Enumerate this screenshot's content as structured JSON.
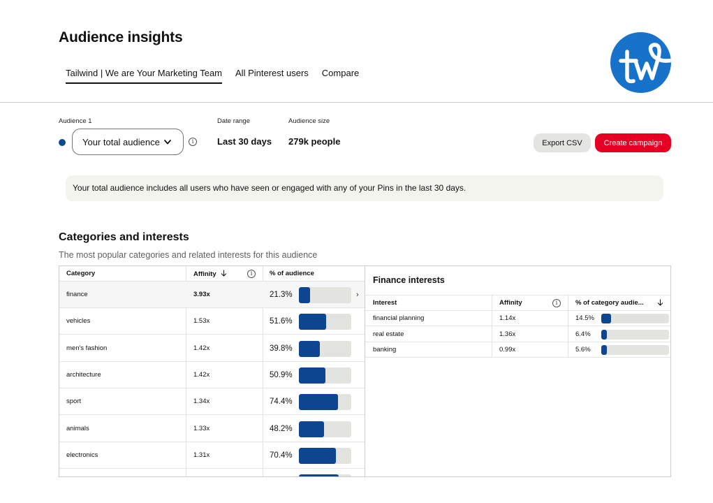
{
  "header": {
    "title": "Audience insights",
    "tabs": [
      {
        "label": "Tailwind | We are Your Marketing Team",
        "active": true
      },
      {
        "label": "All Pinterest users",
        "active": false
      },
      {
        "label": "Compare",
        "active": false
      }
    ],
    "logo": {
      "text": "tw",
      "color": "#1673c9"
    }
  },
  "filters": {
    "audience_label": "Audience 1",
    "audience_value": "Your total audience",
    "audience_dot_color": "#0d4a8f",
    "date_range_label": "Date range",
    "date_range_value": "Last 30 days",
    "audience_size_label": "Audience size",
    "audience_size_value": "279k people"
  },
  "actions": {
    "export_label": "Export CSV",
    "create_label": "Create campaign",
    "create_color": "#e60023"
  },
  "banner": {
    "text": "Your total audience includes all users who have seen or engaged with any of your Pins in the last 30 days."
  },
  "section": {
    "title": "Categories and interests",
    "subtitle": "The most popular categories and related interests for this audience"
  },
  "categories_table": {
    "headers": {
      "category": "Category",
      "affinity": "Affinity",
      "percent": "% of audience"
    },
    "rows": [
      {
        "category": "finance",
        "affinity": "3.93x",
        "percent": "21.3%",
        "fraction": 0.213,
        "selected": true
      },
      {
        "category": "vehicles",
        "affinity": "1.53x",
        "percent": "51.6%",
        "fraction": 0.516,
        "selected": false
      },
      {
        "category": "men's fashion",
        "affinity": "1.42x",
        "percent": "39.8%",
        "fraction": 0.398,
        "selected": false
      },
      {
        "category": "architecture",
        "affinity": "1.42x",
        "percent": "50.9%",
        "fraction": 0.509,
        "selected": false
      },
      {
        "category": "sport",
        "affinity": "1.34x",
        "percent": "74.4%",
        "fraction": 0.744,
        "selected": false
      },
      {
        "category": "animals",
        "affinity": "1.33x",
        "percent": "48.2%",
        "fraction": 0.482,
        "selected": false
      },
      {
        "category": "electronics",
        "affinity": "1.31x",
        "percent": "70.4%",
        "fraction": 0.704,
        "selected": false
      }
    ],
    "partial_row_fraction": 0.76
  },
  "interests_panel": {
    "title": "Finance interests",
    "headers": {
      "interest": "Interest",
      "affinity": "Affinity",
      "percent": "% of category audie..."
    },
    "rows": [
      {
        "interest": "financial planning",
        "affinity": "1.14x",
        "percent": "14.5%",
        "fraction": 0.145
      },
      {
        "interest": "real estate",
        "affinity": "1.36x",
        "percent": "6.4%",
        "fraction": 0.064
      },
      {
        "interest": "banking",
        "affinity": "0.99x",
        "percent": "5.6%",
        "fraction": 0.056
      }
    ]
  }
}
